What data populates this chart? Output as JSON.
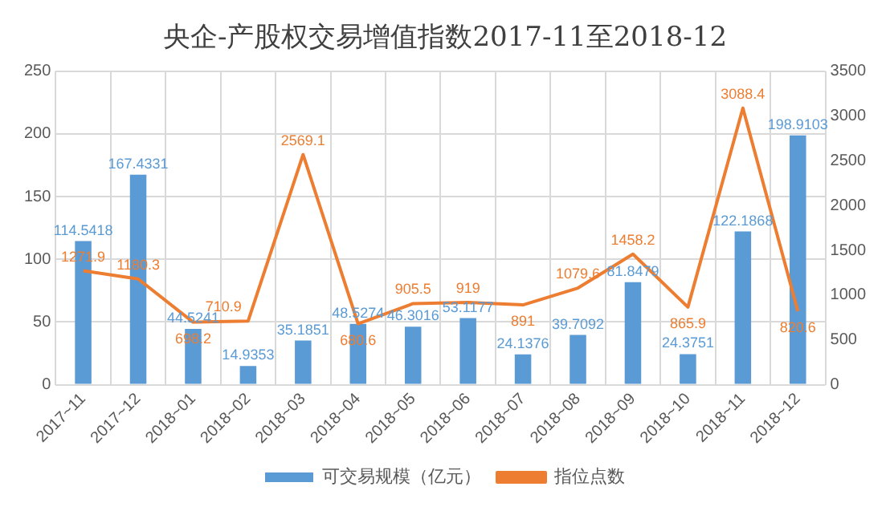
{
  "chart_data": {
    "type": "bar",
    "title": "央企-产股权交易增值指数2017-11至2018-12",
    "categories": [
      "2017~11",
      "2017~12",
      "2018~01",
      "2018~02",
      "2018~03",
      "2018~04",
      "2018~05",
      "2018~06",
      "2018~07",
      "2018~08",
      "2018~09",
      "2018~10",
      "2018~11",
      "2018~12"
    ],
    "series": [
      {
        "name": "可交易规模（亿元）",
        "color": "#5b9bd5",
        "values": [
          114.5418,
          167.4331,
          44.5241,
          14.9353,
          35.1851,
          48.5274,
          46.3016,
          53.1177,
          24.1376,
          39.7092,
          81.8479,
          24.3751,
          122.1868,
          198.9103
        ]
      },
      {
        "name": "指位点数",
        "type": "line",
        "axis": "y2",
        "color": "#ed7d31",
        "values": [
          1271.9,
          1180.3,
          698.2,
          710.9,
          2569.1,
          680.6,
          905.5,
          919,
          891,
          1079.6,
          1458.2,
          865.9,
          3088.4,
          820.6
        ]
      }
    ],
    "ylim": [
      0,
      250
    ],
    "yticks": [
      0,
      50,
      100,
      150,
      200,
      250
    ],
    "y2lim": [
      0,
      3500
    ],
    "y2ticks": [
      0,
      500,
      1000,
      1500,
      2000,
      2500,
      3000,
      3500
    ],
    "grid": true,
    "legend": "bottom",
    "marker": "none",
    "data_labels": true
  }
}
